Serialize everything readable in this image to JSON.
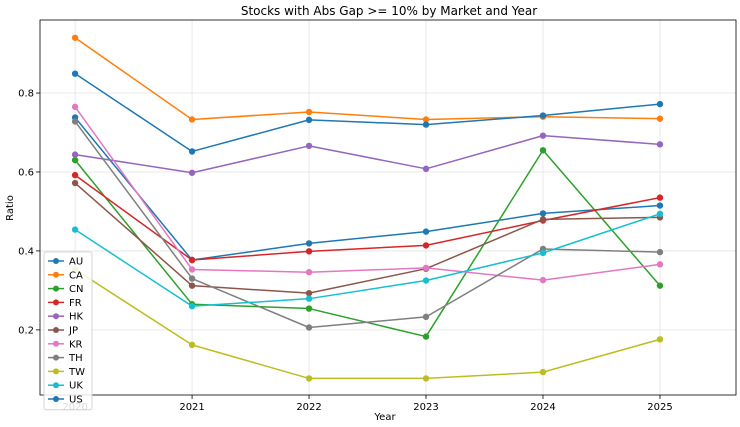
{
  "chart_data": {
    "type": "line",
    "title": "Stocks with Abs Gap >= 10% by Market and Year",
    "xlabel": "Year",
    "ylabel": "Ratio",
    "x": [
      2020,
      2021,
      2022,
      2023,
      2024,
      2025
    ],
    "xlim": [
      2019.7,
      2025.65
    ],
    "ylim": [
      0.035,
      0.985
    ],
    "yticks": [
      0.2,
      0.4,
      0.6,
      0.8
    ],
    "ytick_labels": [
      "0.2",
      "0.4",
      "0.6",
      "0.8"
    ],
    "grid": true,
    "legend_position": "lower-left",
    "series": [
      {
        "name": "AU",
        "color": "#1f77b4",
        "values": [
          0.738,
          0.377,
          0.419,
          0.449,
          0.495,
          0.515
        ]
      },
      {
        "name": "CA",
        "color": "#ff7f0e",
        "values": [
          0.94,
          0.733,
          0.752,
          0.733,
          0.74,
          0.735
        ]
      },
      {
        "name": "CN",
        "color": "#2ca02c",
        "values": [
          0.63,
          0.265,
          0.254,
          0.183,
          0.655,
          0.312
        ]
      },
      {
        "name": "FR",
        "color": "#d62728",
        "values": [
          0.592,
          0.377,
          0.399,
          0.414,
          0.477,
          0.535
        ]
      },
      {
        "name": "HK",
        "color": "#9467bd",
        "values": [
          0.644,
          0.598,
          0.666,
          0.608,
          0.692,
          0.67
        ]
      },
      {
        "name": "JP",
        "color": "#8c564b",
        "values": [
          0.572,
          0.312,
          0.293,
          0.355,
          0.48,
          0.485
        ]
      },
      {
        "name": "KR",
        "color": "#e377c2",
        "values": [
          0.765,
          0.353,
          0.346,
          0.357,
          0.326,
          0.366
        ]
      },
      {
        "name": "TH",
        "color": "#7f7f7f",
        "values": [
          0.728,
          0.33,
          0.206,
          0.233,
          0.405,
          0.397
        ]
      },
      {
        "name": "TW",
        "color": "#bcbd22",
        "values": [
          0.353,
          0.162,
          0.077,
          0.077,
          0.093,
          0.176
        ]
      },
      {
        "name": "UK",
        "color": "#17becf",
        "values": [
          0.454,
          0.26,
          0.279,
          0.325,
          0.395,
          0.494
        ]
      },
      {
        "name": "US",
        "color": "#1f77b4",
        "values": [
          0.849,
          0.652,
          0.732,
          0.72,
          0.743,
          0.772
        ]
      }
    ]
  }
}
